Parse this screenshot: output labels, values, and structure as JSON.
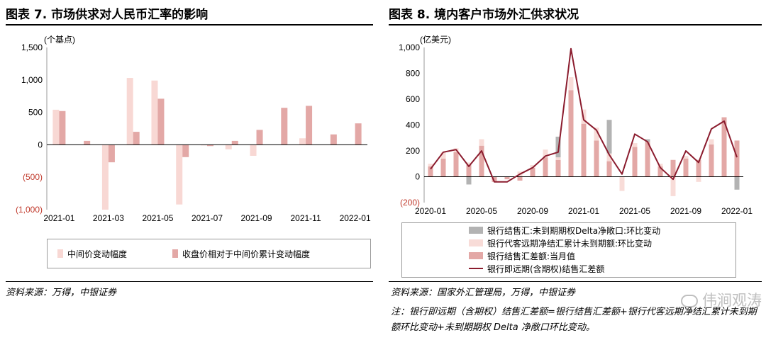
{
  "left": {
    "title": "图表 7. 市场供求对人民币汇率的影响",
    "source": "资料来源：万得，中银证券",
    "legend": [
      {
        "label": "中间价变动幅度",
        "color": "#f8d8d4"
      },
      {
        "label": "收盘价相对于中间价累计变动幅度",
        "color": "#e3a8a6"
      }
    ]
  },
  "right": {
    "title": "图表 8. 境内客户市场外汇供求状况",
    "source": "资料来源：国家外汇管理局，万得，中银证券",
    "note": "注：银行即远期（含期权）结售汇差额=银行结售汇差额+银行代客远期净结汇累计未到期额环比变动+未到期期权 Delta 净敞口环比变动。",
    "legend": [
      {
        "label": "银行结售汇:未到期期权Delta净敞口:环比变动",
        "color": "#b3b3b3"
      },
      {
        "label": "银行代客远期净结汇累计未到期额:环比变动",
        "color": "#f8dcd8"
      },
      {
        "label": "银行结售汇差额:当月值",
        "color": "#e3a8a6"
      },
      {
        "label": "银行即远期(含期权)结售汇差额",
        "color": "#8b1c2e"
      }
    ]
  },
  "watermark": "伟涧观涛",
  "chart_data": [
    {
      "type": "bar",
      "unit": "(个基点)",
      "ylim": [
        -1000,
        1500
      ],
      "yticks": [
        -1000,
        -500,
        0,
        500,
        1000,
        1500
      ],
      "ytick_labels": [
        "(1,000)",
        "(500)",
        "0",
        "500",
        "1,000",
        "1,500"
      ],
      "x_tick_labels": [
        "2021-01",
        "2021-03",
        "2021-05",
        "2021-07",
        "2021-09",
        "2021-11",
        "2022-01"
      ],
      "categories": [
        "2021-01",
        "2021-02",
        "2021-03",
        "2021-04",
        "2021-05",
        "2021-06",
        "2021-07",
        "2021-08",
        "2021-09",
        "2021-10",
        "2021-11",
        "2021-12",
        "2022-01"
      ],
      "series": [
        {
          "name": "中间价变动幅度",
          "values": [
            540,
            0,
            -1000,
            1030,
            990,
            -920,
            -10,
            -70,
            -170,
            0,
            100,
            0,
            0
          ]
        },
        {
          "name": "收盘价相对于中间价累计变动幅度",
          "values": [
            520,
            60,
            -270,
            200,
            710,
            -190,
            -20,
            60,
            230,
            570,
            600,
            160,
            330
          ]
        }
      ]
    },
    {
      "type": "bar",
      "unit": "(亿美元)",
      "ylim": [
        -200,
        1000
      ],
      "yticks": [
        -200,
        0,
        200,
        400,
        600,
        800,
        1000
      ],
      "ytick_labels": [
        "(200)",
        "0",
        "200",
        "400",
        "600",
        "800",
        "1,000"
      ],
      "x_tick_labels": [
        "2020-01",
        "2020-05",
        "2020-09",
        "2021-01",
        "2021-05",
        "2021-09",
        "2022-01"
      ],
      "categories": [
        "2020-01",
        "2020-02",
        "2020-03",
        "2020-04",
        "2020-05",
        "2020-06",
        "2020-07",
        "2020-08",
        "2020-09",
        "2020-10",
        "2020-11",
        "2020-12",
        "2021-01",
        "2021-02",
        "2021-03",
        "2021-04",
        "2021-05",
        "2021-06",
        "2021-07",
        "2021-08",
        "2021-09",
        "2021-10",
        "2021-11",
        "2021-12",
        "2022-01"
      ],
      "series": [
        {
          "name": "银行结售汇:未到期期权Delta净敞口:环比变动",
          "values": [
            0,
            0,
            0,
            -60,
            0,
            0,
            0,
            0,
            0,
            0,
            160,
            0,
            0,
            0,
            260,
            0,
            0,
            20,
            0,
            0,
            0,
            0,
            0,
            0,
            -100
          ]
        },
        {
          "name": "银行代客远期净结汇累计未到期额:环比变动",
          "values": [
            20,
            50,
            30,
            20,
            50,
            0,
            0,
            40,
            20,
            60,
            20,
            100,
            110,
            100,
            60,
            -110,
            30,
            0,
            20,
            -150,
            20,
            -40,
            40,
            0,
            0
          ]
        },
        {
          "name": "银行结售汇差额:当月值",
          "values": [
            80,
            140,
            190,
            90,
            240,
            -40,
            -20,
            -30,
            70,
            150,
            130,
            670,
            410,
            280,
            120,
            0,
            230,
            270,
            80,
            130,
            140,
            130,
            250,
            460,
            280
          ]
        },
        {
          "name": "银行即远期(含期权)结售汇差额",
          "type": "line",
          "values": [
            60,
            190,
            210,
            80,
            200,
            -40,
            -40,
            20,
            70,
            160,
            190,
            990,
            440,
            360,
            170,
            20,
            330,
            270,
            70,
            -20,
            200,
            110,
            370,
            430,
            150
          ]
        }
      ]
    }
  ]
}
